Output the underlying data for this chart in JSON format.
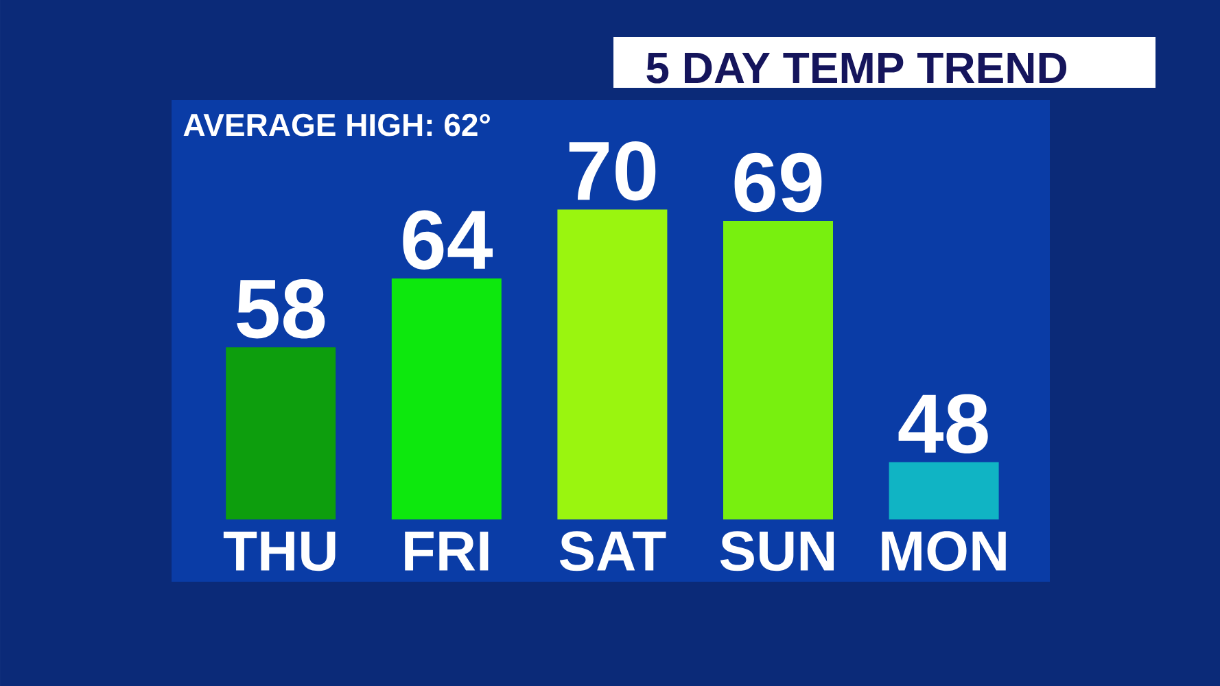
{
  "chart_data": {
    "type": "bar",
    "title": "5 DAY TEMP TREND",
    "annotations": [
      "AVERAGE HIGH: 62°"
    ],
    "categories": [
      "THU",
      "FRI",
      "SAT",
      "SUN",
      "MON"
    ],
    "values": [
      58,
      64,
      70,
      69,
      48
    ],
    "colors": [
      "#0d9e0d",
      "#0de80d",
      "#9af50f",
      "#78f00f",
      "#10b4c4"
    ],
    "ylim": [
      43,
      70
    ],
    "data_labels": true,
    "tick_labels": "x"
  }
}
